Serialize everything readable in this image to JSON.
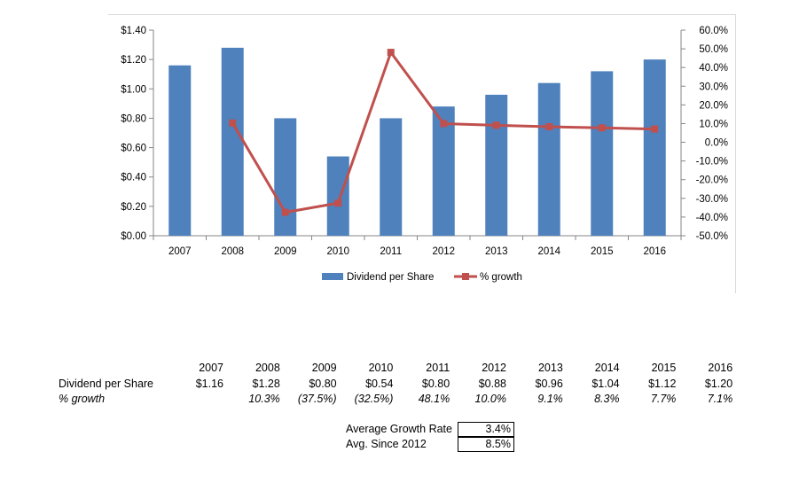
{
  "chart_data": {
    "type": "bar",
    "categories": [
      "2007",
      "2008",
      "2009",
      "2010",
      "2011",
      "2012",
      "2013",
      "2014",
      "2015",
      "2016"
    ],
    "series": [
      {
        "name": "Dividend per Share",
        "type": "bar",
        "axis": "left",
        "color": "#4f81bd",
        "values": [
          1.16,
          1.28,
          0.8,
          0.54,
          0.8,
          0.88,
          0.96,
          1.04,
          1.12,
          1.2
        ]
      },
      {
        "name": "% growth",
        "type": "line",
        "axis": "right",
        "color": "#c0504d",
        "values": [
          null,
          10.3,
          -37.5,
          -32.5,
          48.1,
          10.0,
          9.1,
          8.3,
          7.7,
          7.1
        ]
      }
    ],
    "y_left": {
      "min": 0,
      "max": 1.4,
      "step": 0.2,
      "tick_labels": [
        "$0.00",
        "$0.20",
        "$0.40",
        "$0.60",
        "$0.80",
        "$1.00",
        "$1.20",
        "$1.40"
      ]
    },
    "y_right": {
      "min": -50,
      "max": 60,
      "step": 10,
      "tick_labels": [
        "-50.0%",
        "-40.0%",
        "-30.0%",
        "-20.0%",
        "-10.0%",
        "0.0%",
        "10.0%",
        "20.0%",
        "30.0%",
        "40.0%",
        "50.0%",
        "60.0%"
      ]
    },
    "grid": false,
    "legend": "bottom"
  },
  "table": {
    "years": [
      "2007",
      "2008",
      "2009",
      "2010",
      "2011",
      "2012",
      "2013",
      "2014",
      "2015",
      "2016"
    ],
    "rows": [
      {
        "label": "Dividend per Share",
        "italic": false,
        "cells": [
          "$1.16",
          "$1.28",
          "$0.80",
          "$0.54",
          "$0.80",
          "$0.88",
          "$0.96",
          "$1.04",
          "$1.12",
          "$1.20"
        ]
      },
      {
        "label": "% growth",
        "italic": true,
        "cells": [
          "",
          "10.3%",
          "(37.5%)",
          "(32.5%)",
          "48.1%",
          "10.0%",
          "9.1%",
          "8.3%",
          "7.7%",
          "7.1%"
        ]
      }
    ]
  },
  "summary": {
    "avg_growth_label": "Average Growth Rate",
    "avg_growth_value": "3.4%",
    "avg_since_label": "Avg. Since 2012",
    "avg_since_value": "8.5%"
  }
}
